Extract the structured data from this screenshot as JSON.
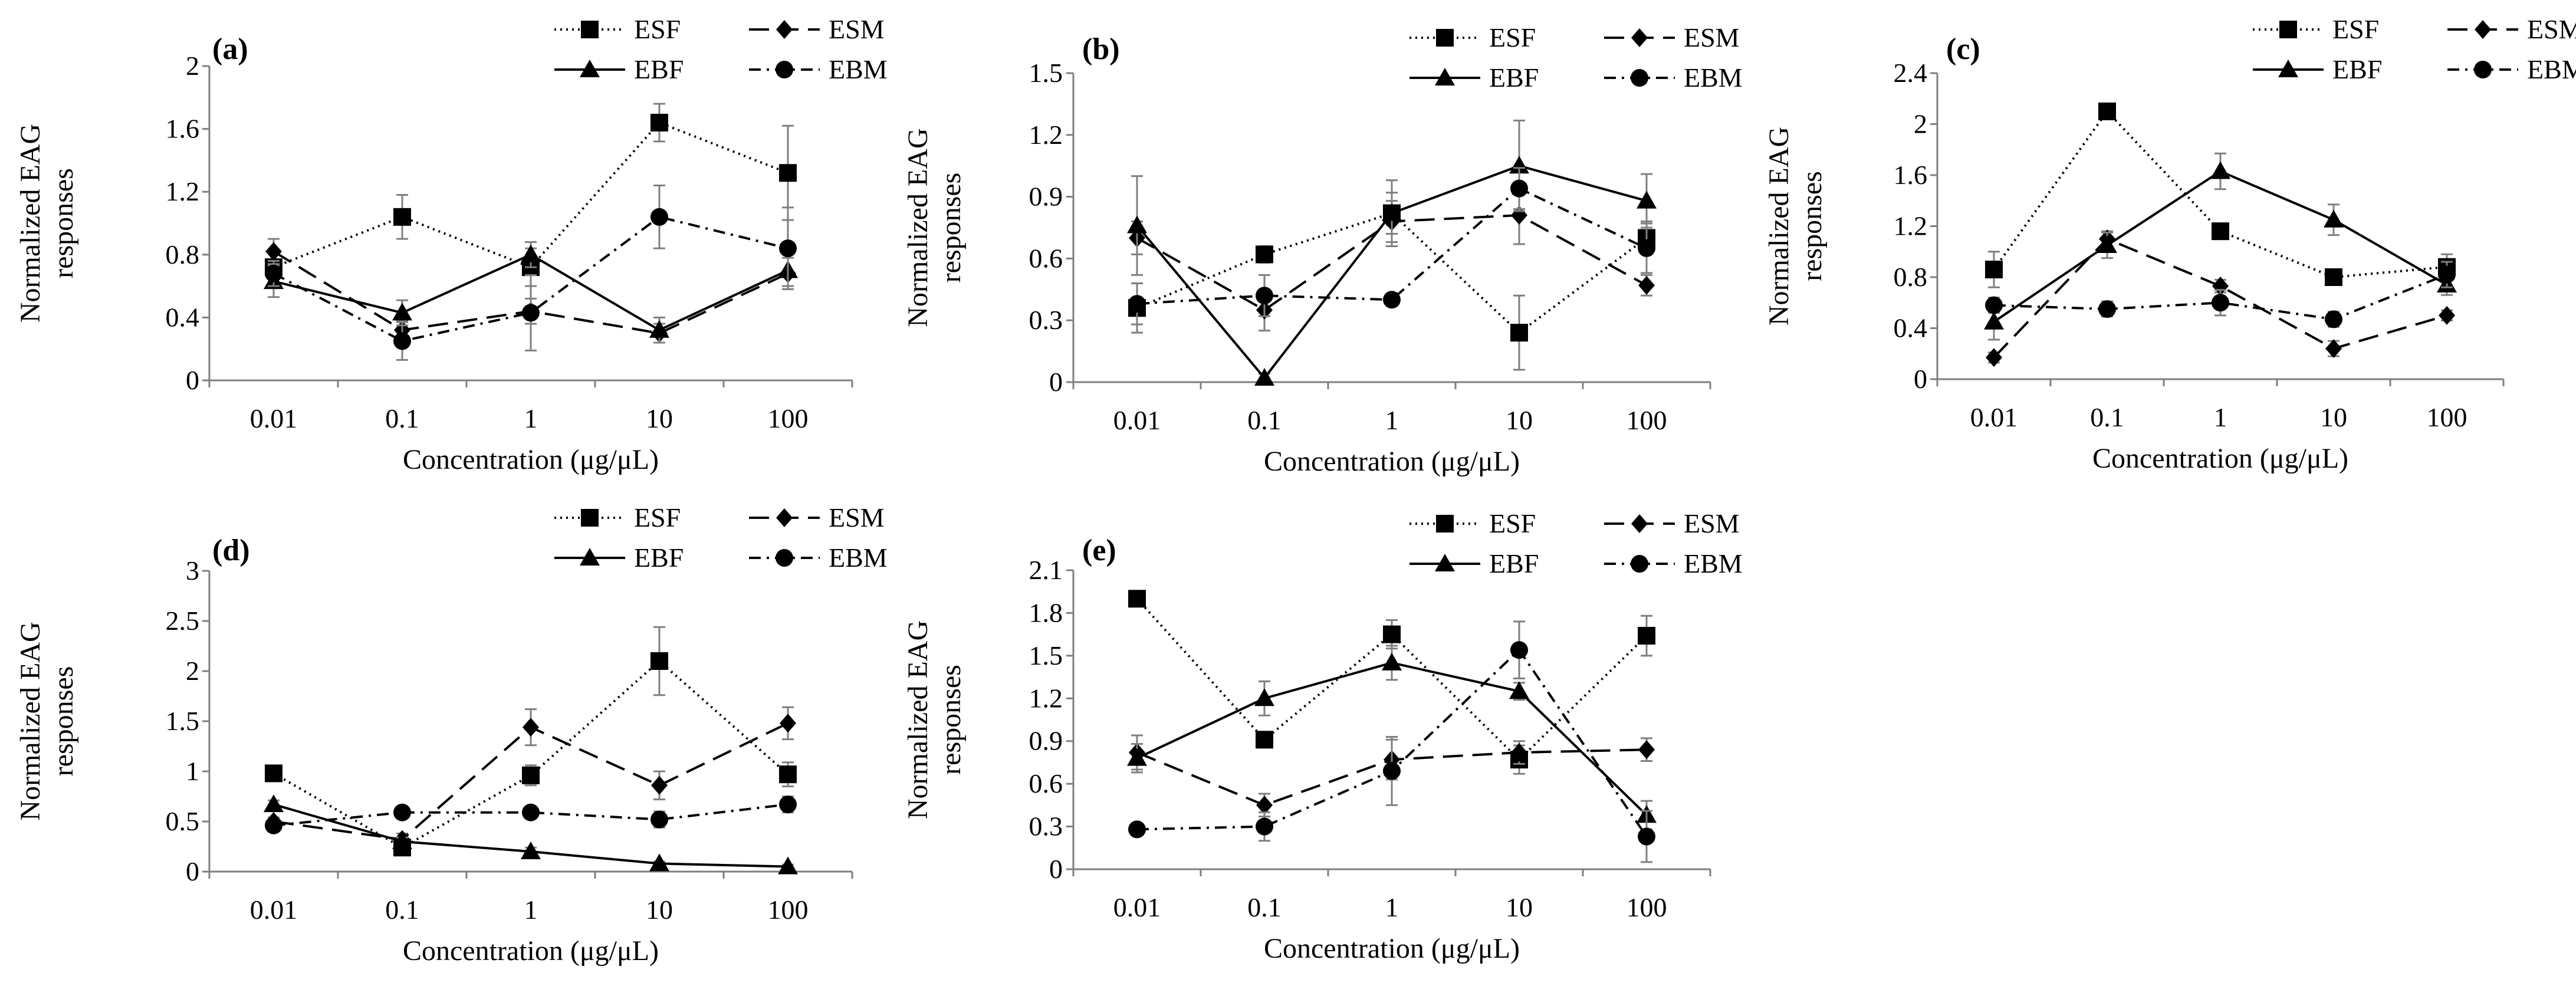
{
  "chart_data": [
    {
      "type": "line",
      "panel": "(a)",
      "xlabel": "Concentration (μg/μL)",
      "ylabel": "Normalized EAG responses",
      "categories": [
        "0.01",
        "0.1",
        "1",
        "10",
        "100"
      ],
      "ylim": [
        0,
        2
      ],
      "yticks": [
        "0",
        "0.4",
        "0.8",
        "1.2",
        "1.6",
        "2"
      ],
      "grid": false,
      "legend": "top-right",
      "series": [
        {
          "name": "ESF",
          "marker": "square",
          "dash": "dotted",
          "values": [
            0.72,
            1.04,
            0.72,
            1.64,
            1.32
          ],
          "errors": [
            0.1,
            0.14,
            0.12,
            0.12,
            0.3
          ]
        },
        {
          "name": "ESM",
          "marker": "diamond",
          "dash": "dashed",
          "values": [
            0.82,
            0.32,
            0.44,
            0.3,
            0.68
          ],
          "errors": [
            0.08,
            0.06,
            0.08,
            0.06,
            0.1
          ]
        },
        {
          "name": "EBF",
          "marker": "triangle",
          "dash": "solid",
          "values": [
            0.63,
            0.43,
            0.8,
            0.32,
            0.7
          ],
          "errors": [
            0.1,
            0.08,
            0.08,
            0.08,
            0.1
          ]
        },
        {
          "name": "EBM",
          "marker": "circle",
          "dash": "dashdot",
          "values": [
            0.68,
            0.25,
            0.43,
            1.04,
            0.84
          ],
          "errors": [
            0.08,
            0.12,
            0.24,
            0.2,
            0.26
          ]
        }
      ]
    },
    {
      "type": "line",
      "panel": "(b)",
      "xlabel": "Concentration (μg/μL)",
      "ylabel": "Normalized EAG responses",
      "categories": [
        "0.01",
        "0.1",
        "1",
        "10",
        "100"
      ],
      "ylim": [
        0,
        1.5
      ],
      "yticks": [
        "0",
        "0.3",
        "0.6",
        "0.9",
        "1.2",
        "1.5"
      ],
      "grid": false,
      "legend": "top-right",
      "series": [
        {
          "name": "ESF",
          "marker": "square",
          "dash": "dotted",
          "values": [
            0.36,
            0.62,
            0.82,
            0.24,
            0.7
          ],
          "errors": [
            0.12,
            0.04,
            0.1,
            0.18,
            0.08
          ]
        },
        {
          "name": "ESM",
          "marker": "diamond",
          "dash": "dashed",
          "values": [
            0.7,
            0.35,
            0.78,
            0.81,
            0.47
          ],
          "errors": [
            0.08,
            0.1,
            0.1,
            0.14,
            0.05
          ]
        },
        {
          "name": "EBF",
          "marker": "triangle",
          "dash": "solid",
          "values": [
            0.76,
            0.02,
            0.82,
            1.05,
            0.88
          ],
          "errors": [
            0.24,
            0.02,
            0.16,
            0.22,
            0.13
          ]
        },
        {
          "name": "EBM",
          "marker": "circle",
          "dash": "dashdot",
          "values": [
            0.38,
            0.42,
            0.4,
            0.94,
            0.65
          ],
          "errors": [
            0.1,
            0.1,
            0.03,
            0.1,
            0.12
          ]
        }
      ]
    },
    {
      "type": "line",
      "panel": "(c)",
      "xlabel": "Concentration (μg/μL)",
      "ylabel": "Normalized EAG responses",
      "categories": [
        "0.01",
        "0.1",
        "1",
        "10",
        "100"
      ],
      "ylim": [
        0,
        2.4
      ],
      "yticks": [
        "0",
        "0.4",
        "0.8",
        "1.2",
        "1.6",
        "2",
        "2.4"
      ],
      "grid": false,
      "legend": "top-right",
      "series": [
        {
          "name": "ESF",
          "marker": "square",
          "dash": "dotted",
          "values": [
            0.86,
            2.1,
            1.16,
            0.8,
            0.88
          ],
          "errors": [
            0.14,
            0.04,
            0.06,
            0.06,
            0.1
          ]
        },
        {
          "name": "ESM",
          "marker": "diamond",
          "dash": "dashed",
          "values": [
            0.17,
            1.1,
            0.73,
            0.24,
            0.5
          ],
          "errors": [
            0.04,
            0.06,
            0.05,
            0.06,
            0.04
          ]
        },
        {
          "name": "EBF",
          "marker": "triangle",
          "dash": "solid",
          "values": [
            0.45,
            1.05,
            1.63,
            1.25,
            0.74
          ],
          "errors": [
            0.14,
            0.1,
            0.14,
            0.12,
            0.08
          ]
        },
        {
          "name": "EBM",
          "marker": "circle",
          "dash": "dashdot",
          "values": [
            0.58,
            0.55,
            0.6,
            0.47,
            0.82
          ],
          "errors": [
            0.06,
            0.06,
            0.1,
            0.06,
            0.1
          ]
        }
      ]
    },
    {
      "type": "line",
      "panel": "(d)",
      "xlabel": "Concentration (μg/μL)",
      "ylabel": "Normalized EAG responses",
      "categories": [
        "0.01",
        "0.1",
        "1",
        "10",
        "100"
      ],
      "ylim": [
        0,
        3
      ],
      "yticks": [
        "0",
        "0.5",
        "1",
        "1.5",
        "2",
        "2.5",
        "3"
      ],
      "grid": false,
      "legend": "top-right",
      "series": [
        {
          "name": "ESF",
          "marker": "square",
          "dash": "dotted",
          "values": [
            0.98,
            0.24,
            0.96,
            2.1,
            0.97
          ],
          "errors": [
            0.04,
            0.04,
            0.1,
            0.34,
            0.12
          ]
        },
        {
          "name": "ESM",
          "marker": "diamond",
          "dash": "dashed",
          "values": [
            0.5,
            0.32,
            1.44,
            0.86,
            1.48
          ],
          "errors": [
            0.04,
            0.06,
            0.18,
            0.14,
            0.16
          ]
        },
        {
          "name": "EBF",
          "marker": "triangle",
          "dash": "solid",
          "values": [
            0.67,
            0.3,
            0.2,
            0.08,
            0.05
          ],
          "errors": [
            0.04,
            0.04,
            0.04,
            0.02,
            0.02
          ]
        },
        {
          "name": "EBM",
          "marker": "circle",
          "dash": "dashdot",
          "values": [
            0.46,
            0.59,
            0.59,
            0.52,
            0.67
          ],
          "errors": [
            0.06,
            0.04,
            0.06,
            0.08,
            0.08
          ]
        }
      ]
    },
    {
      "type": "line",
      "panel": "(e)",
      "xlabel": "Concentration (μg/μL)",
      "ylabel": "Normalized EAG responses",
      "categories": [
        "0.01",
        "0.1",
        "1",
        "10",
        "100"
      ],
      "ylim": [
        0,
        2.1
      ],
      "yticks": [
        "0",
        "0.3",
        "0.6",
        "0.9",
        "1.2",
        "1.5",
        "1.8",
        "2.1"
      ],
      "grid": false,
      "legend": "top-right",
      "series": [
        {
          "name": "ESF",
          "marker": "square",
          "dash": "dotted",
          "values": [
            1.9,
            0.91,
            1.65,
            0.77,
            1.64
          ],
          "errors": [
            0.04,
            0.05,
            0.1,
            0.1,
            0.14
          ]
        },
        {
          "name": "ESM",
          "marker": "diamond",
          "dash": "dashed",
          "values": [
            0.82,
            0.45,
            0.77,
            0.82,
            0.84
          ],
          "errors": [
            0.12,
            0.08,
            0.14,
            0.08,
            0.08
          ]
        },
        {
          "name": "EBF",
          "marker": "triangle",
          "dash": "solid",
          "values": [
            0.78,
            1.2,
            1.45,
            1.25,
            0.38
          ],
          "errors": [
            0.1,
            0.12,
            0.12,
            0.06,
            0.1
          ]
        },
        {
          "name": "EBM",
          "marker": "circle",
          "dash": "dashdot",
          "values": [
            0.28,
            0.3,
            0.69,
            1.54,
            0.23
          ],
          "errors": [
            0.02,
            0.1,
            0.24,
            0.2,
            0.18
          ]
        }
      ]
    }
  ]
}
